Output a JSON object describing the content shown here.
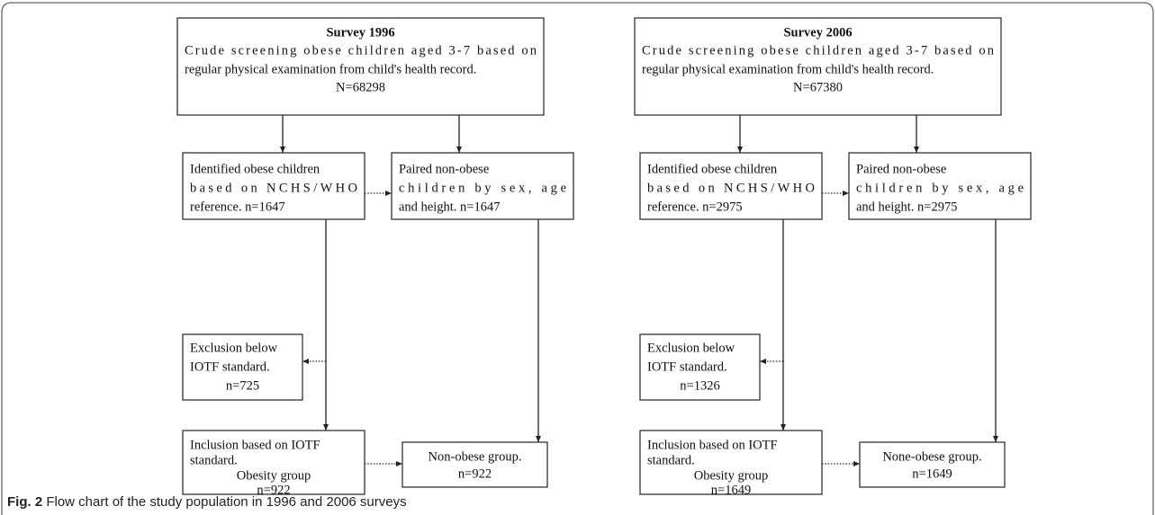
{
  "diagrams": [
    {
      "boxes": [
        {
          "lines": [
            "Survey 1996",
            "Crude screening obese children aged 3-7 based on",
            "regular physical examination from child's health record.",
            "N=68298"
          ]
        },
        {
          "lines": [
            "Identified obese children",
            "based on NCHS/WHO",
            "reference. n=1647"
          ]
        },
        {
          "lines": [
            "Paired non-obese",
            "children by sex, age",
            "and height. n=1647"
          ]
        },
        {
          "lines": [
            "Exclusion below",
            "IOTF standard.",
            "n=725"
          ]
        },
        {
          "lines": [
            "Inclusion based on IOTF",
            "standard.",
            "Obesity group",
            "n=922"
          ]
        },
        {
          "lines": [
            "Non-obese group.",
            "n=922"
          ]
        }
      ]
    },
    {
      "boxes": [
        {
          "lines": [
            "Survey 2006",
            "Crude screening obese children aged 3-7 based on",
            "regular physical examination from child's health record.",
            "N=67380"
          ]
        },
        {
          "lines": [
            "Identified obese children",
            "based on NCHS/WHO",
            "reference. n=2975"
          ]
        },
        {
          "lines": [
            "Paired non-obese",
            "children by sex, age",
            "and height. n=2975"
          ]
        },
        {
          "lines": [
            "Exclusion below",
            "IOTF standard.",
            "n=1326"
          ]
        },
        {
          "lines": [
            "Inclusion based on IOTF",
            "standard.",
            "Obesity group",
            "n=1649"
          ]
        },
        {
          "lines": [
            "None-obese group.",
            "n=1649"
          ]
        }
      ]
    }
  ],
  "caption": {
    "label": "Fig. 2",
    "text": "Flow chart of the study population in 1996 and 2006 surveys"
  }
}
